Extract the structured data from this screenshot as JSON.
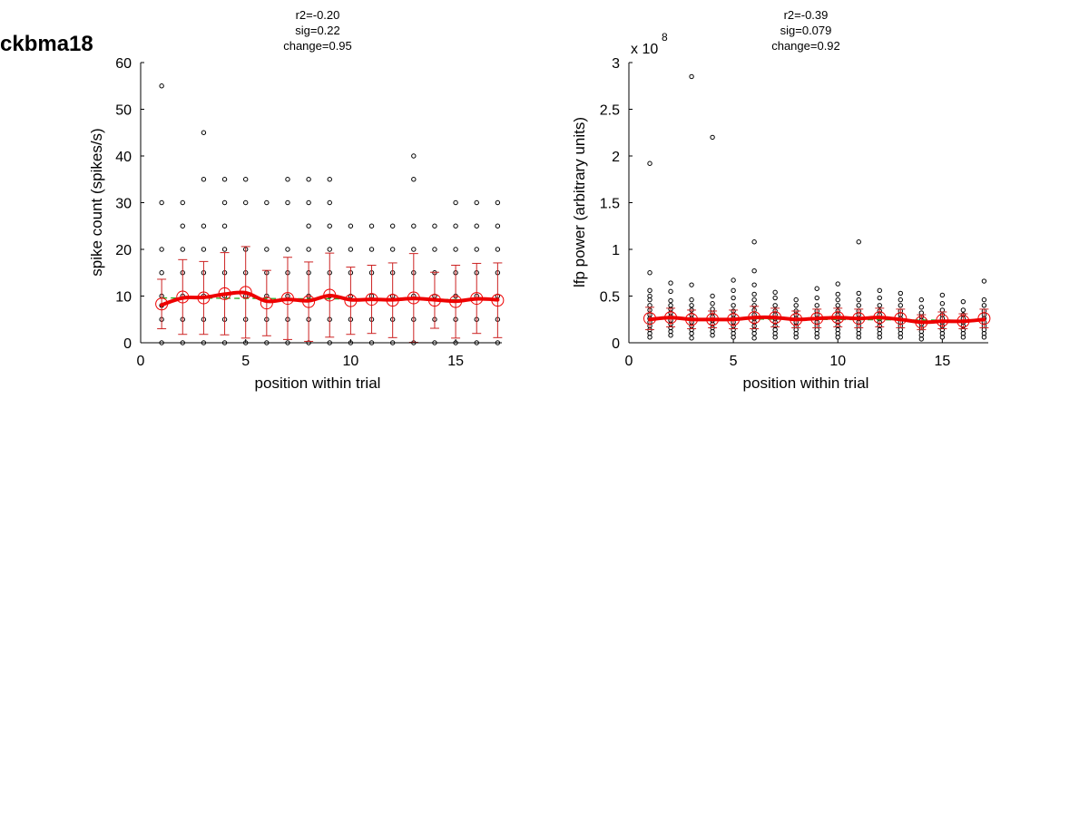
{
  "figure_label": "ckbma18",
  "chart_data": [
    {
      "type": "scatter",
      "title_lines": [
        "r2=-0.20",
        "sig=0.22",
        "change=0.95"
      ],
      "xlabel": "position within trial",
      "ylabel": "spike count (spikes/s)",
      "xlim": [
        0,
        17.2
      ],
      "ylim": [
        0,
        60
      ],
      "xticks": [
        0,
        5,
        10,
        15
      ],
      "yticks": [
        0,
        10,
        20,
        30,
        40,
        50,
        60
      ],
      "tick_labels_x": [
        "0",
        "5",
        "10",
        "15"
      ],
      "tick_labels_y": [
        "0",
        "10",
        "20",
        "30",
        "40",
        "50",
        "60"
      ],
      "scale_note": "",
      "grid": false,
      "colors": {
        "points": "#000000",
        "mean": "#ee0000",
        "fit": "#ee0000",
        "trend": "#22aa22",
        "errorbar": "#cc2222"
      },
      "points": [
        {
          "x": 1,
          "ys": [
            0,
            5,
            8,
            10,
            15,
            20,
            30,
            55
          ]
        },
        {
          "x": 2,
          "ys": [
            0,
            5,
            10,
            15,
            20,
            25,
            30
          ]
        },
        {
          "x": 3,
          "ys": [
            0,
            5,
            10,
            15,
            20,
            25,
            35,
            45
          ]
        },
        {
          "x": 4,
          "ys": [
            0,
            5,
            10,
            15,
            20,
            25,
            30,
            35
          ]
        },
        {
          "x": 5,
          "ys": [
            0,
            5,
            10,
            15,
            20,
            30,
            35
          ]
        },
        {
          "x": 6,
          "ys": [
            0,
            5,
            10,
            15,
            20,
            30
          ]
        },
        {
          "x": 7,
          "ys": [
            0,
            5,
            10,
            15,
            20,
            30,
            35
          ]
        },
        {
          "x": 8,
          "ys": [
            0,
            5,
            10,
            15,
            20,
            25,
            30,
            35
          ]
        },
        {
          "x": 9,
          "ys": [
            0,
            5,
            10,
            15,
            20,
            25,
            30,
            35
          ]
        },
        {
          "x": 10,
          "ys": [
            0,
            5,
            10,
            15,
            20,
            25
          ]
        },
        {
          "x": 11,
          "ys": [
            0,
            5,
            10,
            15,
            20,
            25
          ]
        },
        {
          "x": 12,
          "ys": [
            0,
            5,
            10,
            15,
            20,
            25
          ]
        },
        {
          "x": 13,
          "ys": [
            0,
            5,
            10,
            15,
            20,
            25,
            35,
            40
          ]
        },
        {
          "x": 14,
          "ys": [
            0,
            5,
            10,
            15,
            20,
            25
          ]
        },
        {
          "x": 15,
          "ys": [
            0,
            5,
            10,
            15,
            20,
            25,
            30
          ]
        },
        {
          "x": 16,
          "ys": [
            0,
            5,
            10,
            15,
            20,
            25,
            30
          ]
        },
        {
          "x": 17,
          "ys": [
            0,
            5,
            10,
            15,
            20,
            25,
            30
          ]
        }
      ],
      "mean": {
        "x": [
          1,
          2,
          3,
          4,
          5,
          6,
          7,
          8,
          9,
          10,
          11,
          12,
          13,
          14,
          15,
          16,
          17
        ],
        "y": [
          8.3,
          9.8,
          9.6,
          10.5,
          10.8,
          8.5,
          9.5,
          8.8,
          10.2,
          9.0,
          9.3,
          9.1,
          9.6,
          9.1,
          8.8,
          9.5,
          9.1
        ],
        "err": [
          5.3,
          8.0,
          7.8,
          8.8,
          9.8,
          7.0,
          8.8,
          8.5,
          9.0,
          7.2,
          7.3,
          8.0,
          9.5,
          6.0,
          7.8,
          7.5,
          8.0
        ]
      },
      "fit_y": [
        8.1,
        9.6,
        9.7,
        10.4,
        10.7,
        8.9,
        9.3,
        9.0,
        10.1,
        9.2,
        9.3,
        9.2,
        9.5,
        9.2,
        8.9,
        9.4,
        9.2
      ],
      "trend": {
        "x": [
          1,
          17
        ],
        "y": [
          9.6,
          9.2
        ]
      }
    },
    {
      "type": "scatter",
      "title_lines": [
        "r2=-0.39",
        "sig=0.079",
        "change=0.92"
      ],
      "xlabel": "position within trial",
      "ylabel": "lfp power (arbitrary units)",
      "xlim": [
        0,
        17.2
      ],
      "ylim": [
        0,
        3
      ],
      "xticks": [
        0,
        5,
        10,
        15
      ],
      "yticks": [
        0,
        0.5,
        1,
        1.5,
        2,
        2.5,
        3
      ],
      "tick_labels_x": [
        "0",
        "5",
        "10",
        "15"
      ],
      "tick_labels_y": [
        "0",
        "0.5",
        "1",
        "1.5",
        "2",
        "2.5",
        "3"
      ],
      "scale_note": "x 10",
      "scale_exp": "8",
      "grid": false,
      "colors": {
        "points": "#000000",
        "mean": "#ee0000",
        "fit": "#ee0000",
        "trend": "#22aa22",
        "errorbar": "#cc2222"
      },
      "points": [
        {
          "x": 1,
          "ys": [
            0.06,
            0.1,
            0.14,
            0.18,
            0.22,
            0.26,
            0.3,
            0.35,
            0.4,
            0.46,
            0.5,
            0.56,
            0.75,
            1.92
          ]
        },
        {
          "x": 2,
          "ys": [
            0.08,
            0.12,
            0.16,
            0.2,
            0.24,
            0.28,
            0.32,
            0.36,
            0.4,
            0.45,
            0.55,
            0.64
          ]
        },
        {
          "x": 3,
          "ys": [
            0.05,
            0.1,
            0.14,
            0.18,
            0.22,
            0.26,
            0.3,
            0.35,
            0.4,
            0.46,
            0.62,
            2.85
          ]
        },
        {
          "x": 4,
          "ys": [
            0.08,
            0.12,
            0.16,
            0.2,
            0.24,
            0.28,
            0.32,
            0.36,
            0.42,
            0.5,
            2.2
          ]
        },
        {
          "x": 5,
          "ys": [
            0.06,
            0.1,
            0.14,
            0.18,
            0.22,
            0.26,
            0.3,
            0.34,
            0.4,
            0.48,
            0.56,
            0.67
          ]
        },
        {
          "x": 6,
          "ys": [
            0.05,
            0.1,
            0.14,
            0.18,
            0.22,
            0.26,
            0.3,
            0.35,
            0.4,
            0.46,
            0.52,
            0.62,
            0.77,
            1.08
          ]
        },
        {
          "x": 7,
          "ys": [
            0.06,
            0.1,
            0.14,
            0.18,
            0.22,
            0.26,
            0.3,
            0.34,
            0.4,
            0.48,
            0.54
          ]
        },
        {
          "x": 8,
          "ys": [
            0.06,
            0.1,
            0.14,
            0.18,
            0.22,
            0.26,
            0.3,
            0.34,
            0.4,
            0.46
          ]
        },
        {
          "x": 9,
          "ys": [
            0.06,
            0.1,
            0.14,
            0.18,
            0.22,
            0.26,
            0.3,
            0.34,
            0.4,
            0.48,
            0.58
          ]
        },
        {
          "x": 10,
          "ys": [
            0.06,
            0.1,
            0.14,
            0.18,
            0.22,
            0.26,
            0.3,
            0.34,
            0.4,
            0.46,
            0.52,
            0.63
          ]
        },
        {
          "x": 11,
          "ys": [
            0.06,
            0.1,
            0.14,
            0.18,
            0.22,
            0.26,
            0.3,
            0.34,
            0.4,
            0.46,
            0.53,
            1.08
          ]
        },
        {
          "x": 12,
          "ys": [
            0.06,
            0.1,
            0.14,
            0.18,
            0.22,
            0.26,
            0.3,
            0.34,
            0.4,
            0.48,
            0.56
          ]
        },
        {
          "x": 13,
          "ys": [
            0.06,
            0.1,
            0.14,
            0.18,
            0.22,
            0.26,
            0.3,
            0.34,
            0.4,
            0.46,
            0.53
          ]
        },
        {
          "x": 14,
          "ys": [
            0.04,
            0.08,
            0.12,
            0.16,
            0.2,
            0.24,
            0.28,
            0.32,
            0.38,
            0.46
          ]
        },
        {
          "x": 15,
          "ys": [
            0.06,
            0.1,
            0.14,
            0.18,
            0.22,
            0.26,
            0.3,
            0.35,
            0.42,
            0.51
          ]
        },
        {
          "x": 16,
          "ys": [
            0.06,
            0.1,
            0.14,
            0.18,
            0.22,
            0.26,
            0.3,
            0.35,
            0.44
          ]
        },
        {
          "x": 17,
          "ys": [
            0.06,
            0.1,
            0.14,
            0.18,
            0.22,
            0.26,
            0.3,
            0.34,
            0.4,
            0.46,
            0.66
          ]
        }
      ],
      "mean": {
        "x": [
          1,
          2,
          3,
          4,
          5,
          6,
          7,
          8,
          9,
          10,
          11,
          12,
          13,
          14,
          15,
          16,
          17
        ],
        "y": [
          0.26,
          0.27,
          0.25,
          0.25,
          0.25,
          0.27,
          0.27,
          0.25,
          0.26,
          0.27,
          0.26,
          0.27,
          0.26,
          0.22,
          0.24,
          0.23,
          0.26
        ],
        "err": [
          0.12,
          0.1,
          0.1,
          0.09,
          0.1,
          0.12,
          0.1,
          0.09,
          0.1,
          0.1,
          0.1,
          0.1,
          0.1,
          0.08,
          0.09,
          0.08,
          0.1
        ]
      },
      "fit_y": [
        0.25,
        0.27,
        0.25,
        0.25,
        0.25,
        0.27,
        0.27,
        0.25,
        0.26,
        0.27,
        0.26,
        0.27,
        0.25,
        0.22,
        0.23,
        0.23,
        0.25
      ],
      "trend": {
        "x": [
          1,
          17
        ],
        "y": [
          0.26,
          0.24
        ]
      }
    }
  ]
}
